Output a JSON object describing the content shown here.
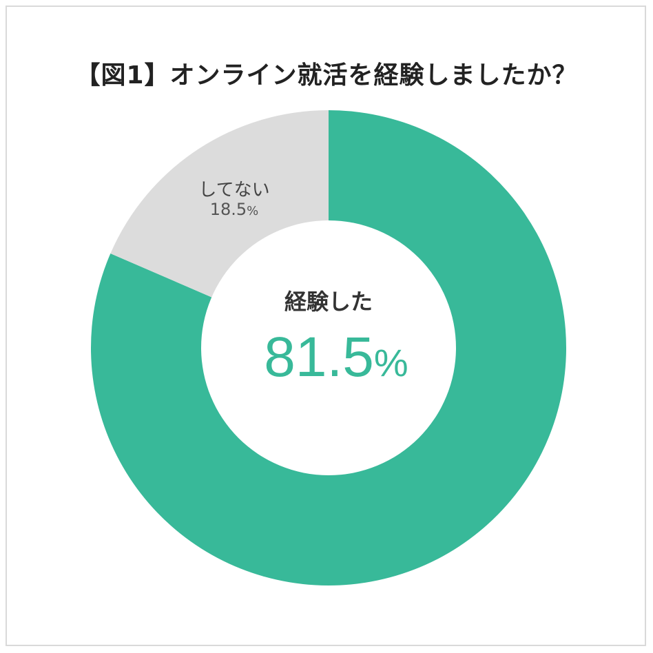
{
  "title": "【図1】オンライン就活を経験しましたか？",
  "colors": {
    "accent": "#38b999",
    "secondary": "#dcdcdc",
    "text": "#333333",
    "percent_text": "#555555"
  },
  "chart_data": {
    "type": "pie",
    "title": "【図1】オンライン就活を経験しましたか？",
    "slices": [
      {
        "label": "経験した",
        "value": 81.5,
        "display_value": "81.5",
        "unit": "%",
        "color": "#38b999"
      },
      {
        "label": "してない",
        "value": 18.5,
        "display_value": "18.5",
        "unit": "%",
        "color": "#dcdcdc"
      }
    ],
    "center_label": "経験した",
    "center_value": "81.5",
    "center_unit": "%"
  }
}
